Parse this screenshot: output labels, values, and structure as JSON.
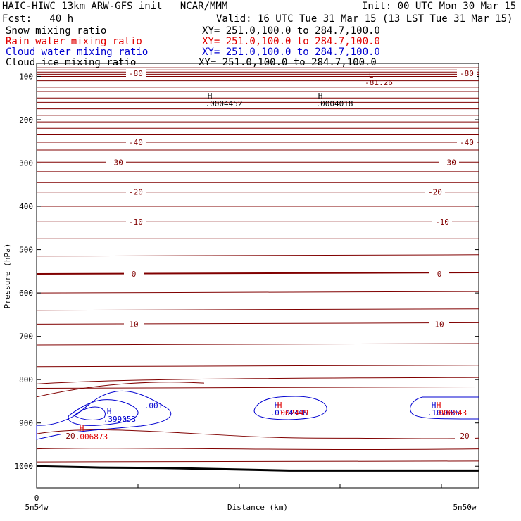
{
  "header": {
    "title_left": "HAIC-HIWC 13km ARW-GFS init   NCAR/MMM",
    "init": "Init: 00 UTC Mon 30 Mar 15",
    "fcst": "Fcst:   40 h",
    "valid": "Valid: 16 UTC Tue 31 Mar 15 (13 LST Tue 31 Mar 15)",
    "fields": [
      {
        "name": "Snow mixing ratio",
        "xy": "XY= 251.0,100.0 to 284.7,100.0",
        "color": "#000000"
      },
      {
        "name": "Rain water mixing ratio",
        "xy": "XY= 251.0,100.0 to 284.7,100.0",
        "color": "#e00000"
      },
      {
        "name": "Cloud water mixing ratio",
        "xy": "XY= 251.0,100.0 to 284.7,100.0",
        "color": "#0000d0"
      },
      {
        "name": "Cloud ice mixing ratio",
        "xy": "XY= 251.0,100.0 to 284.7,100.0",
        "color": "#000000"
      }
    ]
  },
  "chart_data": {
    "type": "line",
    "xlabel": "Distance (km)",
    "ylabel": "Pressure (hPa)",
    "x_left_label": "5n54w",
    "x_right_label": "5n50w",
    "x_zero_label": "0",
    "y_ticks": [
      100,
      200,
      300,
      400,
      500,
      600,
      700,
      800,
      900,
      1000
    ],
    "ylim": [
      1050,
      70
    ],
    "temperature_contours": {
      "color": "#800000",
      "levels_labeled": [
        {
          "value": "-80",
          "p": 93
        },
        {
          "value": "-40",
          "p": 252
        },
        {
          "value": "-30",
          "p": 298
        },
        {
          "value": "-20",
          "p": 367
        },
        {
          "value": "-10",
          "p": 436
        },
        {
          "value": "0",
          "p": 556
        },
        {
          "value": "10",
          "p": 672
        },
        {
          "value": "20",
          "p": 930
        }
      ],
      "low_label": {
        "symbol": "L",
        "value": "-81.26"
      }
    },
    "snow_maxima": [
      {
        "symbol": "H",
        "value": ".0004452"
      },
      {
        "symbol": "H",
        "value": ".0004018"
      }
    ],
    "cloud_water": {
      "color": "#0000d0",
      "contour_label": ".001",
      "maxima": [
        {
          "symbol": "H",
          "value": ".399053"
        },
        {
          "symbol": "H",
          "value": ".0174346"
        },
        {
          "symbol": "H",
          "value": ".107685"
        }
      ]
    },
    "rain_water": {
      "color": "#e00000",
      "maxima": [
        {
          "symbol": "H",
          "value": ".006873"
        },
        {
          "symbol": "H",
          "value": ".002449"
        },
        {
          "symbol": "H",
          "value": ".006543"
        }
      ]
    },
    "surface_pressure": [
      1000,
      1003,
      1004,
      1007,
      1010,
      1010,
      1010,
      1010
    ]
  }
}
